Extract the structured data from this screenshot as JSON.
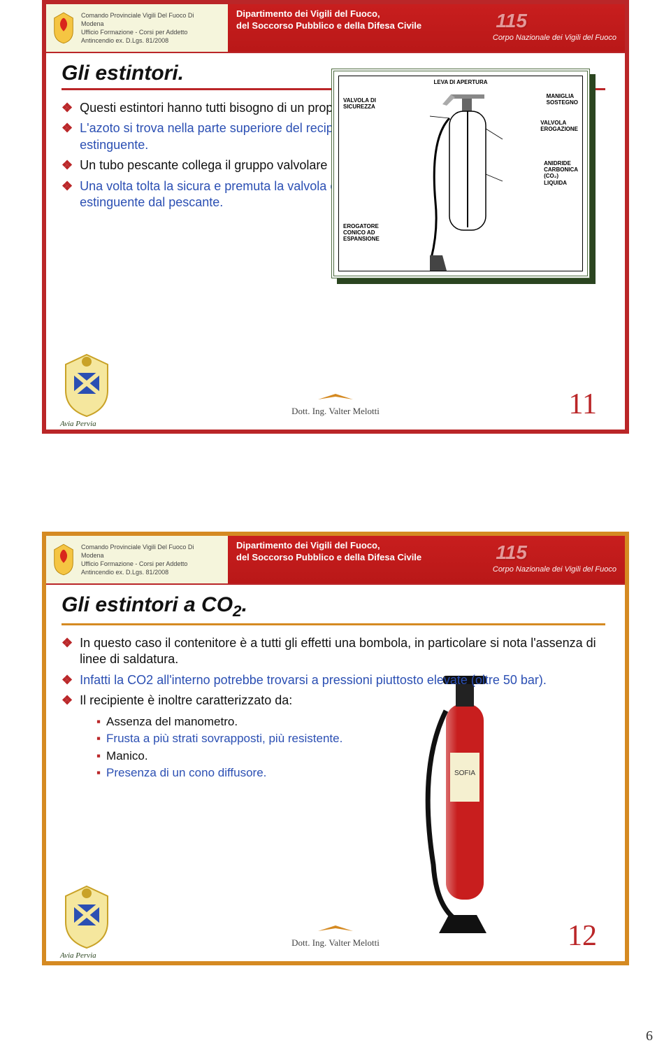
{
  "header": {
    "org_lines": "Comando Provinciale Vigili Del Fuoco Di\nModena\nUfficio Formazione - Corsi per Addetto\nAntincendio ex. D.Lgs. 81/2008",
    "dept_line1": "Dipartimento dei Vigili del Fuoco,",
    "dept_line2": "del Soccorso Pubblico e della Difesa Civile",
    "corpo": "Corpo Nazionale dei Vigili del Fuoco",
    "emergency_number": "115"
  },
  "slide11": {
    "title": "Gli estintori.",
    "title_color": "#111111",
    "border_color": "#ba2628",
    "title_underline_color": "#ba2628",
    "page_number": "11",
    "bullets": [
      {
        "html": "Questi estintori hanno tutti bisogno di un propellente, che quasi sempre è <em>AZOTO</em>.",
        "color": "#111111"
      },
      {
        "html": "L'azoto si trova nella parte superiore del recipiente, a diretto contatto con la sostanza estinguente.",
        "color": "#2b4fb3"
      },
      {
        "html": "Un tubo pescante collega il gruppo valvolare con il fondo del recipiente.",
        "color": "#111111"
      },
      {
        "html": "Una volta tolta la sicura e premuta la valvola con decisione, l'azoto spinge fuori la sostanza estinguente dal pescante.",
        "color": "#2b4fb3"
      }
    ],
    "diagram_labels": {
      "leva": "LEVA DI APERTURA",
      "valvola_sicurezza": "VALVOLA DI\nSICUREZZA",
      "maniglia": "MANIGLIA\nSOSTEGNO",
      "valvola_erogazione": "VALVOLA\nEROGAZIONE",
      "anidride": "ANIDRIDE\nCARBONICA\n(CO₂)\nLIQUIDA",
      "erogatore": "EROGATORE\nCONICO AD\nESPANSIONE"
    },
    "diagram_border_color": "#4d6b3f",
    "diagram_shadow_color": "#2b4520"
  },
  "slide12": {
    "title_html": "Gli estintori a CO<span class='sub'>2</span>.",
    "title_color": "#111111",
    "border_color": "#d58a22",
    "title_underline_color": "#d58a22",
    "page_number": "12",
    "bullets": [
      {
        "html": "In questo caso il contenitore è a tutti gli effetti una bombola, in particolare si nota l'assenza di linee di saldatura.",
        "color": "#111111"
      },
      {
        "html": "Infatti la CO2 all'interno potrebbe trovarsi a pressioni piuttosto elevate (oltre 50 bar).",
        "color": "#2b4fb3"
      },
      {
        "html": "Il recipiente è inoltre caratterizzato da:",
        "color": "#111111"
      }
    ],
    "subitems": [
      {
        "text": "Assenza del manometro.",
        "color": "#111111"
      },
      {
        "text": "Frusta a più strati sovrapposti, più resistente.",
        "color": "#2b4fb3"
      },
      {
        "text": "Manico.",
        "color": "#111111"
      },
      {
        "text": "Presenza di un cono diffusore.",
        "color": "#2b4fb3"
      }
    ]
  },
  "footer": {
    "author": "Dott. Ing. Valter Melotti",
    "avia": "Avia Pervia"
  },
  "doc_page_number": "6",
  "colors": {
    "red": "#ba2628",
    "orange": "#d58a22",
    "blue_text": "#2b4fb3",
    "green_dark": "#2b4520"
  }
}
